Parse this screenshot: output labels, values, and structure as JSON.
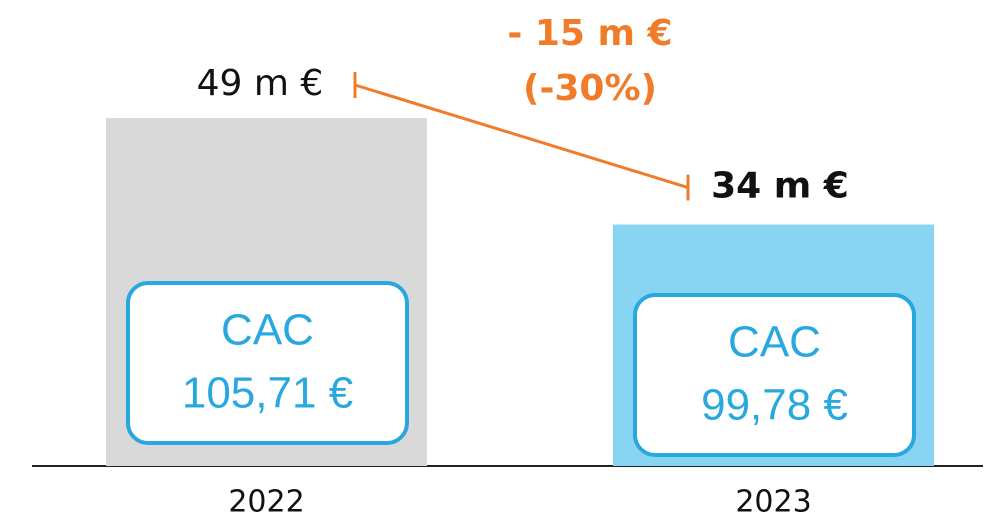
{
  "chart_data": {
    "type": "bar",
    "categories": [
      "2022",
      "2023"
    ],
    "values": [
      49,
      34
    ],
    "value_labels": [
      "49 m €",
      "34 m €"
    ],
    "colors": [
      "#d9d9d9",
      "#87d5f3"
    ],
    "inner_labels": [
      {
        "title": "CAC",
        "value": "105,71 €"
      },
      {
        "title": "CAC",
        "value": "99,78 €"
      }
    ],
    "annotation": {
      "line1": "- 15 m €",
      "line2": "(-30%)",
      "color": "#f07c2a"
    }
  }
}
